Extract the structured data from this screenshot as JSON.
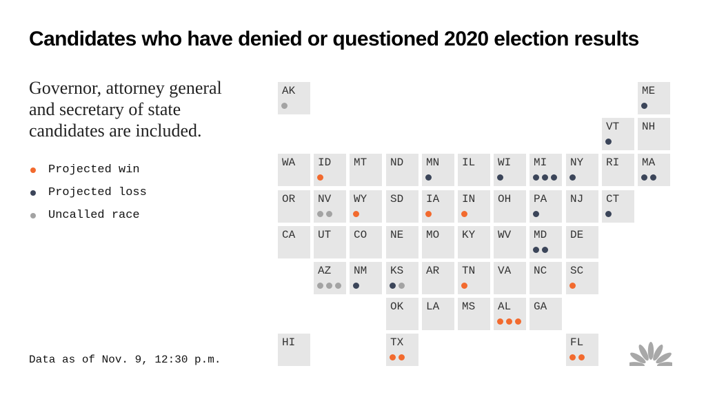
{
  "title": "Candidates who have denied or questioned 2020 election results",
  "subtitle": "Governor, attorney general and secretary of state candidates are included.",
  "legend": [
    {
      "label": "Projected win",
      "status": "win"
    },
    {
      "label": "Projected loss",
      "status": "loss"
    },
    {
      "label": "Uncalled race",
      "status": "uncalled"
    }
  ],
  "colors": {
    "win": "#f26a2e",
    "loss": "#3b4559",
    "uncalled": "#a3a3a3",
    "tile": "#e6e6e6"
  },
  "footnote": "Data as of Nov. 9, 12:30 p.m.",
  "logo": {
    "icon": "peacock-logo-icon"
  },
  "states": [
    {
      "abbr": "AK",
      "row": 0,
      "col": 0,
      "dots": [
        "uncalled"
      ]
    },
    {
      "abbr": "ME",
      "row": 0,
      "col": 10,
      "dots": [
        "loss"
      ]
    },
    {
      "abbr": "VT",
      "row": 1,
      "col": 9,
      "dots": [
        "loss"
      ]
    },
    {
      "abbr": "NH",
      "row": 1,
      "col": 10,
      "dots": []
    },
    {
      "abbr": "WA",
      "row": 2,
      "col": 0,
      "dots": []
    },
    {
      "abbr": "ID",
      "row": 2,
      "col": 1,
      "dots": [
        "win"
      ]
    },
    {
      "abbr": "MT",
      "row": 2,
      "col": 2,
      "dots": []
    },
    {
      "abbr": "ND",
      "row": 2,
      "col": 3,
      "dots": []
    },
    {
      "abbr": "MN",
      "row": 2,
      "col": 4,
      "dots": [
        "loss"
      ]
    },
    {
      "abbr": "IL",
      "row": 2,
      "col": 5,
      "dots": []
    },
    {
      "abbr": "WI",
      "row": 2,
      "col": 6,
      "dots": [
        "loss"
      ]
    },
    {
      "abbr": "MI",
      "row": 2,
      "col": 7,
      "dots": [
        "loss",
        "loss",
        "loss"
      ]
    },
    {
      "abbr": "NY",
      "row": 2,
      "col": 8,
      "dots": [
        "loss"
      ]
    },
    {
      "abbr": "RI",
      "row": 2,
      "col": 9,
      "dots": []
    },
    {
      "abbr": "MA",
      "row": 2,
      "col": 10,
      "dots": [
        "loss",
        "loss"
      ]
    },
    {
      "abbr": "OR",
      "row": 3,
      "col": 0,
      "dots": []
    },
    {
      "abbr": "NV",
      "row": 3,
      "col": 1,
      "dots": [
        "uncalled",
        "uncalled"
      ]
    },
    {
      "abbr": "WY",
      "row": 3,
      "col": 2,
      "dots": [
        "win"
      ]
    },
    {
      "abbr": "SD",
      "row": 3,
      "col": 3,
      "dots": []
    },
    {
      "abbr": "IA",
      "row": 3,
      "col": 4,
      "dots": [
        "win"
      ]
    },
    {
      "abbr": "IN",
      "row": 3,
      "col": 5,
      "dots": [
        "win"
      ]
    },
    {
      "abbr": "OH",
      "row": 3,
      "col": 6,
      "dots": []
    },
    {
      "abbr": "PA",
      "row": 3,
      "col": 7,
      "dots": [
        "loss"
      ]
    },
    {
      "abbr": "NJ",
      "row": 3,
      "col": 8,
      "dots": []
    },
    {
      "abbr": "CT",
      "row": 3,
      "col": 9,
      "dots": [
        "loss"
      ]
    },
    {
      "abbr": "CA",
      "row": 4,
      "col": 0,
      "dots": []
    },
    {
      "abbr": "UT",
      "row": 4,
      "col": 1,
      "dots": []
    },
    {
      "abbr": "CO",
      "row": 4,
      "col": 2,
      "dots": []
    },
    {
      "abbr": "NE",
      "row": 4,
      "col": 3,
      "dots": []
    },
    {
      "abbr": "MO",
      "row": 4,
      "col": 4,
      "dots": []
    },
    {
      "abbr": "KY",
      "row": 4,
      "col": 5,
      "dots": []
    },
    {
      "abbr": "WV",
      "row": 4,
      "col": 6,
      "dots": []
    },
    {
      "abbr": "MD",
      "row": 4,
      "col": 7,
      "dots": [
        "loss",
        "loss"
      ]
    },
    {
      "abbr": "DE",
      "row": 4,
      "col": 8,
      "dots": []
    },
    {
      "abbr": "AZ",
      "row": 5,
      "col": 1,
      "dots": [
        "uncalled",
        "uncalled",
        "uncalled"
      ]
    },
    {
      "abbr": "NM",
      "row": 5,
      "col": 2,
      "dots": [
        "loss"
      ]
    },
    {
      "abbr": "KS",
      "row": 5,
      "col": 3,
      "dots": [
        "loss",
        "uncalled"
      ]
    },
    {
      "abbr": "AR",
      "row": 5,
      "col": 4,
      "dots": []
    },
    {
      "abbr": "TN",
      "row": 5,
      "col": 5,
      "dots": [
        "win"
      ]
    },
    {
      "abbr": "VA",
      "row": 5,
      "col": 6,
      "dots": []
    },
    {
      "abbr": "NC",
      "row": 5,
      "col": 7,
      "dots": []
    },
    {
      "abbr": "SC",
      "row": 5,
      "col": 8,
      "dots": [
        "win"
      ]
    },
    {
      "abbr": "OK",
      "row": 6,
      "col": 3,
      "dots": []
    },
    {
      "abbr": "LA",
      "row": 6,
      "col": 4,
      "dots": []
    },
    {
      "abbr": "MS",
      "row": 6,
      "col": 5,
      "dots": []
    },
    {
      "abbr": "AL",
      "row": 6,
      "col": 6,
      "dots": [
        "win",
        "win",
        "win"
      ]
    },
    {
      "abbr": "GA",
      "row": 6,
      "col": 7,
      "dots": []
    },
    {
      "abbr": "HI",
      "row": 7,
      "col": 0,
      "dots": []
    },
    {
      "abbr": "TX",
      "row": 7,
      "col": 3,
      "dots": [
        "win",
        "win"
      ]
    },
    {
      "abbr": "FL",
      "row": 7,
      "col": 8,
      "dots": [
        "win",
        "win"
      ]
    }
  ]
}
